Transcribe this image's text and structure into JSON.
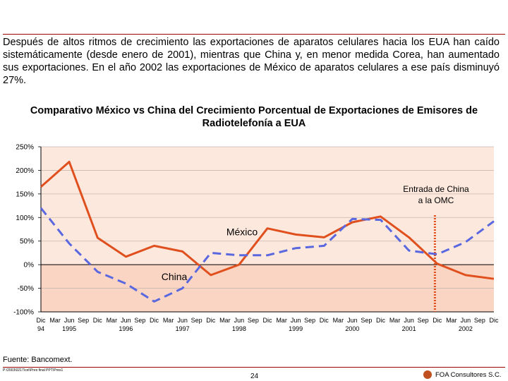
{
  "intro_text": "Después de altos ritmos de crecimiento las exportaciones de aparatos celulares hacia los EUA han caído sistemáticamente (desde enero de 2001), mientras que China y, en menor medida Corea, han aumentado sus exportaciones. En el año 2002 las exportaciones de México de aparatos celulares a ese país disminuyó 27%.",
  "chart_data": {
    "type": "line",
    "title": "Comparativo México vs China del Crecimiento Porcentual de Exportaciones de Emisores de Radiotelefonía a EUA",
    "ylim": [
      -100,
      250
    ],
    "y_ticks": [
      -100,
      -50,
      0,
      50,
      100,
      150,
      200,
      250
    ],
    "y_tick_labels": [
      "-100%",
      "-50%",
      "0%",
      "50%",
      "100%",
      "150%",
      "200%",
      "250%"
    ],
    "x_labels": [
      "Dic 94",
      "Mar",
      "Jun 1995",
      "Sep",
      "Dic",
      "Mar",
      "Jun 1996",
      "Sep",
      "Dic",
      "Mar",
      "Jun 1997",
      "Sep",
      "Dic",
      "Mar",
      "Jun 1998",
      "Sep",
      "Dic",
      "Mar",
      "Jun 1999",
      "Sep",
      "Dic",
      "Mar",
      "Jun 2000",
      "Sep",
      "Dic",
      "Mar",
      "Jun 2001",
      "Sep",
      "Dic",
      "Mar",
      "Jun 2002",
      "Sep",
      "Dic"
    ],
    "x_month_labels": [
      "Dic",
      "Mar",
      "Jun",
      "Sep",
      "Dic",
      "Mar",
      "Jun",
      "Sep",
      "Dic",
      "Mar",
      "Jun",
      "Sep",
      "Dic",
      "Mar",
      "Jun",
      "Sep",
      "Dic",
      "Mar",
      "Jun",
      "Sep",
      "Dic",
      "Mar",
      "Jun",
      "Sep",
      "Dic",
      "Mar",
      "Jun",
      "Sep",
      "Dic",
      "Mar",
      "Jun",
      "Sep",
      "Dic"
    ],
    "x_year_labels": [
      {
        "index": 0,
        "label": "94"
      },
      {
        "index": 2,
        "label": "1995"
      },
      {
        "index": 6,
        "label": "1996"
      },
      {
        "index": 10,
        "label": "1997"
      },
      {
        "index": 14,
        "label": "1998"
      },
      {
        "index": 18,
        "label": "1999"
      },
      {
        "index": 22,
        "label": "2000"
      },
      {
        "index": 26,
        "label": "2001"
      },
      {
        "index": 30,
        "label": "2002"
      }
    ],
    "series": [
      {
        "name": "México",
        "style": "solid",
        "color": "#e0501e",
        "points": [
          [
            0,
            165
          ],
          [
            6,
            218
          ],
          [
            12,
            57
          ],
          [
            18,
            17
          ],
          [
            24,
            40
          ],
          [
            30,
            28
          ],
          [
            36,
            -22
          ],
          [
            42,
            0
          ],
          [
            48,
            77
          ],
          [
            54,
            64
          ],
          [
            60,
            58
          ],
          [
            66,
            90
          ],
          [
            72,
            102
          ],
          [
            78,
            58
          ],
          [
            84,
            2
          ],
          [
            90,
            -22
          ],
          [
            96,
            -30
          ]
        ]
      },
      {
        "name": "China",
        "style": "dashed",
        "color": "#5a68e0",
        "points": [
          [
            0,
            120
          ],
          [
            6,
            45
          ],
          [
            12,
            -15
          ],
          [
            18,
            -40
          ],
          [
            24,
            -78
          ],
          [
            30,
            -50
          ],
          [
            36,
            25
          ],
          [
            42,
            20
          ],
          [
            48,
            20
          ],
          [
            54,
            35
          ],
          [
            60,
            40
          ],
          [
            66,
            97
          ],
          [
            72,
            95
          ],
          [
            78,
            30
          ],
          [
            84,
            22
          ],
          [
            90,
            48
          ],
          [
            96,
            92
          ]
        ]
      }
    ],
    "annotations": [
      {
        "text": "México",
        "series": "México"
      },
      {
        "text": "China",
        "series": "China"
      },
      {
        "text_line1": "Entrada de China",
        "text_line2": "a la OMC",
        "x": 83.5
      }
    ],
    "grid": true,
    "background_positive": "#fde8dd",
    "background_negative": "#fbd5c3"
  },
  "source_text": "Fuente: Bancomext.",
  "file_path": "P:\\2003\\0217\\cel\\Pres final PPT\\Pres1",
  "page_number": "24",
  "company_name": "FOA Consultores S.C."
}
